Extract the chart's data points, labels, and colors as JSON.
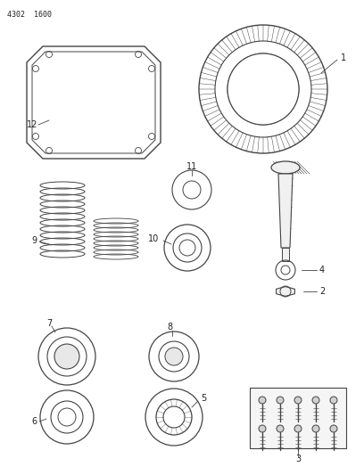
{
  "title_text": "4302  1600",
  "bg_color": "#ffffff",
  "line_color": "#444444",
  "text_color": "#222222",
  "figsize": [
    4.08,
    5.33
  ],
  "dpi": 100
}
